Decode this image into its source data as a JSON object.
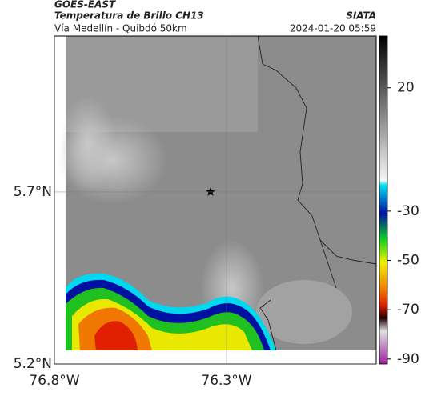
{
  "header": {
    "source": "GOES-EAST",
    "title": "Temperatura de Brillo CH13",
    "brand": "SIATA",
    "route": "Vía Medellín - Quibdó 50km",
    "timestamp": "2024-01-20 05:59"
  },
  "map": {
    "ylim": [
      5.2,
      6.153
    ],
    "xlim": [
      -76.8,
      -75.865
    ],
    "yticks": [
      {
        "value": 5.7,
        "label": "5.7°N"
      },
      {
        "value": 5.2,
        "label": "5.2°N"
      }
    ],
    "xticks": [
      {
        "value": -76.8,
        "label": "76.8°W"
      },
      {
        "value": -76.3,
        "label": "76.3°W"
      }
    ],
    "colorbar": {
      "lim": [
        -92,
        41
      ],
      "ticks": [
        20,
        -30,
        -50,
        -70,
        -90
      ]
    }
  }
}
